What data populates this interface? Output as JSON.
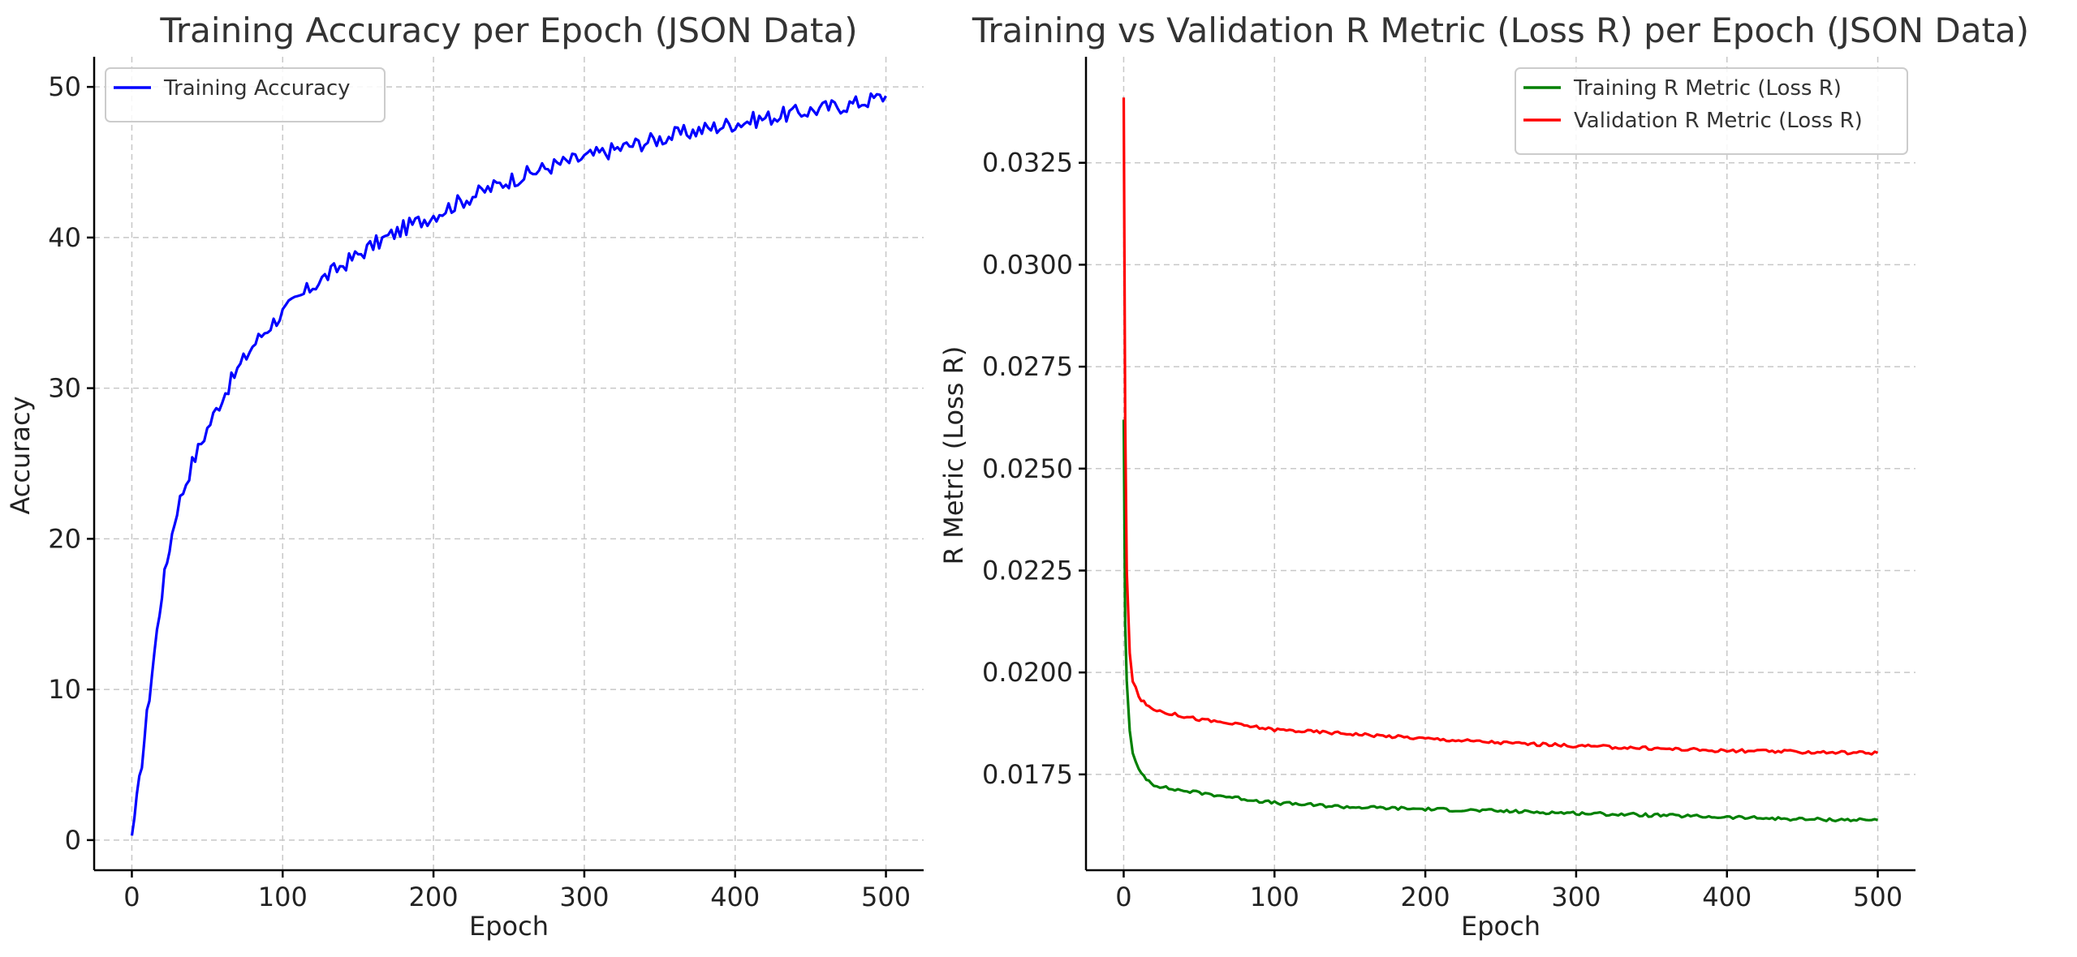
{
  "chart_data": [
    {
      "type": "line",
      "title": "Training Accuracy per Epoch (JSON Data)",
      "xlabel": "Epoch",
      "ylabel": "Accuracy",
      "xlim": [
        -25,
        525
      ],
      "ylim": [
        -2,
        52
      ],
      "xticks": [
        0,
        100,
        200,
        300,
        400,
        500
      ],
      "yticks": [
        0,
        10,
        20,
        30,
        40,
        50
      ],
      "grid": true,
      "legend_position": "upper-left",
      "series": [
        {
          "name": "Training Accuracy",
          "color": "#0000ff",
          "x": [
            0,
            5,
            10,
            15,
            20,
            25,
            30,
            40,
            50,
            60,
            70,
            80,
            90,
            100,
            120,
            140,
            160,
            180,
            200,
            220,
            250,
            280,
            300,
            330,
            360,
            400,
            430,
            460,
            480,
            500
          ],
          "y": [
            0.3,
            3.8,
            8.2,
            12.5,
            16.5,
            19.5,
            22.0,
            25.0,
            27.3,
            29.4,
            31.2,
            32.8,
            34.0,
            35.0,
            36.8,
            38.2,
            39.5,
            40.6,
            41.5,
            42.5,
            43.8,
            44.8,
            45.3,
            46.1,
            46.8,
            47.6,
            48.1,
            48.6,
            48.9,
            49.4
          ]
        }
      ]
    },
    {
      "type": "line",
      "title": "Training vs Validation R Metric (Loss R) per Epoch (JSON Data)",
      "xlabel": "Epoch",
      "ylabel": "R Metric (Loss R)",
      "xlim": [
        -25,
        525
      ],
      "ylim": [
        0.01515,
        0.0351
      ],
      "xticks": [
        0,
        100,
        200,
        300,
        400,
        500
      ],
      "yticks": [
        0.0175,
        0.02,
        0.0225,
        0.025,
        0.0275,
        0.03,
        0.0325
      ],
      "ytick_labels": [
        "0.0175",
        "0.0200",
        "0.0225",
        "0.0250",
        "0.0275",
        "0.0300",
        "0.0325"
      ],
      "grid": true,
      "legend_position": "upper-right",
      "series": [
        {
          "name": "Training R Metric (Loss R)",
          "color": "#008000",
          "x": [
            0,
            1,
            2,
            4,
            6,
            10,
            15,
            20,
            30,
            50,
            80,
            100,
            150,
            200,
            250,
            300,
            350,
            400,
            450,
            500
          ],
          "y": [
            0.0262,
            0.0212,
            0.0198,
            0.0186,
            0.018,
            0.0176,
            0.0174,
            0.01725,
            0.01715,
            0.01705,
            0.0169,
            0.0168,
            0.0167,
            0.01665,
            0.0166,
            0.01655,
            0.0165,
            0.01645,
            0.0164,
            0.01638
          ]
        },
        {
          "name": "Validation R Metric (Loss R)",
          "color": "#ff0000",
          "x": [
            0,
            1,
            2,
            4,
            6,
            10,
            15,
            20,
            30,
            50,
            80,
            100,
            150,
            200,
            250,
            300,
            350,
            400,
            450,
            500
          ],
          "y": [
            0.0341,
            0.0262,
            0.0225,
            0.0205,
            0.0198,
            0.0194,
            0.0192,
            0.0191,
            0.019,
            0.01885,
            0.0187,
            0.0186,
            0.0185,
            0.01838,
            0.01828,
            0.0182,
            0.01814,
            0.01808,
            0.01805,
            0.01803
          ]
        }
      ]
    }
  ]
}
